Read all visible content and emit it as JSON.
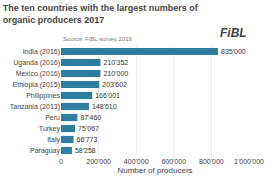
{
  "chart_data": {
    "type": "bar",
    "orientation": "horizontal",
    "title": "The ten countries with the largest numbers of organic producers 2017",
    "annotations": [
      "Source: FiBL survey 2019",
      "FiBL"
    ],
    "xlabel": "Number of producers",
    "categories": [
      "Paraguay",
      "Italy",
      "Turkey",
      "Peru",
      "Tanzania (2013)",
      "Philippines",
      "Ethiopia (2015)",
      "Mexico (2016)",
      "Uganda (2016)",
      "India (2016)"
    ],
    "values": [
      58258,
      66773,
      75067,
      87460,
      148610,
      166001,
      203602,
      210000,
      210352,
      835000
    ],
    "value_labels": [
      "58'258",
      "66'773",
      "75'067",
      "87'460",
      "148'610",
      "166'001",
      "203'602",
      "210'000",
      "210'352",
      "835'000"
    ],
    "data_labels": true,
    "color": "#2e7f9f",
    "xlim": [
      0,
      1000000
    ],
    "xticks": [
      0,
      {
        "value": 200000,
        "label": "200'000"
      },
      {
        "value": 400000,
        "label": "400'000"
      },
      {
        "value": 600000,
        "label": "600'000"
      },
      {
        "value": 800000,
        "label": "800'000"
      },
      {
        "value": 1000000,
        "label": "1'000'000"
      }
    ],
    "grid": true
  }
}
